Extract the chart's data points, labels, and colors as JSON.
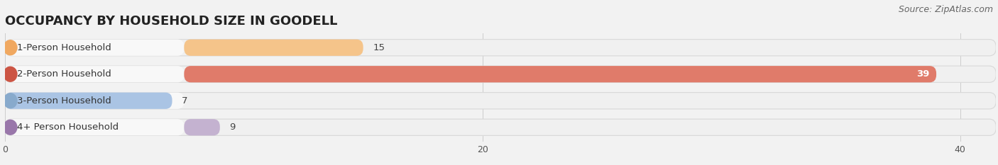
{
  "title": "OCCUPANCY BY HOUSEHOLD SIZE IN GOODELL",
  "source": "Source: ZipAtlas.com",
  "categories": [
    "1-Person Household",
    "2-Person Household",
    "3-Person Household",
    "4+ Person Household"
  ],
  "values": [
    15,
    39,
    7,
    9
  ],
  "bar_colors": [
    "#f5c48a",
    "#e07b6a",
    "#aac4e4",
    "#c4b2d0"
  ],
  "circle_colors": [
    "#f0a860",
    "#cc5544",
    "#88aacc",
    "#9977aa"
  ],
  "xlim_max": 41.5,
  "xticks": [
    0,
    20,
    40
  ],
  "background_color": "#f2f2f2",
  "bar_bg_color": "#e8e8e8",
  "bar_label_bg": "#f8f8f8",
  "title_fontsize": 13,
  "source_fontsize": 9,
  "label_fontsize": 9.5,
  "value_fontsize": 9.5,
  "bar_height": 0.62,
  "figsize": [
    14.06,
    2.33
  ],
  "dpi": 100
}
